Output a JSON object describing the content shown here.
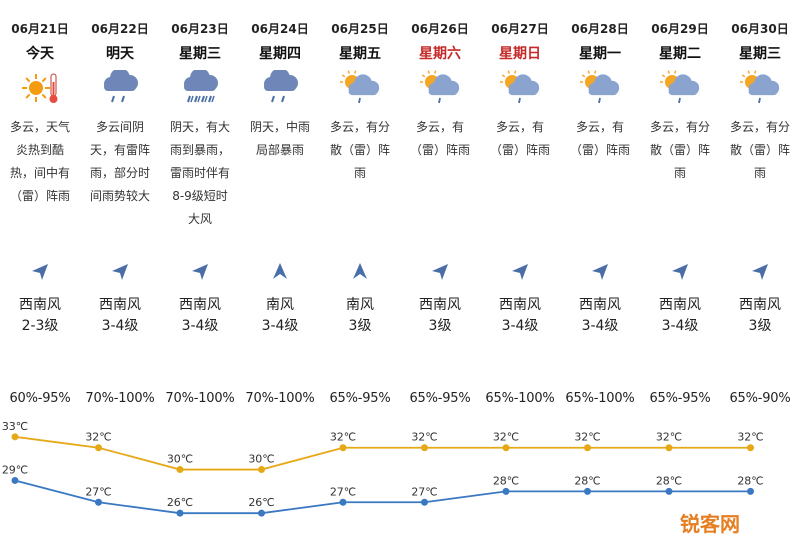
{
  "days": [
    {
      "date": "06月21日",
      "day": "今天",
      "weekend": false,
      "icon": "sun-hot-icon",
      "desc": "多云，天气炎热到酷热，间中有（雷）阵雨",
      "wind_dir": "西南风",
      "wind_level": "2-3级",
      "wind_arrow": "arrow-northeast-icon",
      "humidity": "60%-95%"
    },
    {
      "date": "06月22日",
      "day": "明天",
      "weekend": false,
      "icon": "cloud-rain-icon",
      "desc": "多云间阴天，有雷阵雨，部分时间雨势较大",
      "wind_dir": "西南风",
      "wind_level": "3-4级",
      "wind_arrow": "arrow-northeast-icon",
      "humidity": "70%-100%"
    },
    {
      "date": "06月23日",
      "day": "星期三",
      "weekend": false,
      "icon": "cloud-heavy-rain-icon",
      "desc": "阴天，有大雨到暴雨，雷雨时伴有8-9级短时大风",
      "wind_dir": "西南风",
      "wind_level": "3-4级",
      "wind_arrow": "arrow-northeast-icon",
      "humidity": "70%-100%"
    },
    {
      "date": "06月24日",
      "day": "星期四",
      "weekend": false,
      "icon": "cloud-rain-icon",
      "desc": "阴天，中雨局部暴雨",
      "wind_dir": "南风",
      "wind_level": "3-4级",
      "wind_arrow": "arrow-north-icon",
      "humidity": "70%-100%"
    },
    {
      "date": "06月25日",
      "day": "星期五",
      "weekend": false,
      "icon": "partly-cloudy-rain-icon",
      "desc": "多云，有分散（雷）阵雨",
      "wind_dir": "南风",
      "wind_level": "3级",
      "wind_arrow": "arrow-north-icon",
      "humidity": "65%-95%"
    },
    {
      "date": "06月26日",
      "day": "星期六",
      "weekend": true,
      "icon": "partly-cloudy-rain-icon",
      "desc": "多云，有（雷）阵雨",
      "wind_dir": "西南风",
      "wind_level": "3级",
      "wind_arrow": "arrow-northeast-icon",
      "humidity": "65%-95%"
    },
    {
      "date": "06月27日",
      "day": "星期日",
      "weekend": true,
      "icon": "partly-cloudy-rain-icon",
      "desc": "多云，有（雷）阵雨",
      "wind_dir": "西南风",
      "wind_level": "3-4级",
      "wind_arrow": "arrow-northeast-icon",
      "humidity": "65%-100%"
    },
    {
      "date": "06月28日",
      "day": "星期一",
      "weekend": false,
      "icon": "partly-cloudy-rain-icon",
      "desc": "多云，有（雷）阵雨",
      "wind_dir": "西南风",
      "wind_level": "3-4级",
      "wind_arrow": "arrow-northeast-icon",
      "humidity": "65%-100%"
    },
    {
      "date": "06月29日",
      "day": "星期二",
      "weekend": false,
      "icon": "partly-cloudy-rain-icon",
      "desc": "多云，有分散（雷）阵雨",
      "wind_dir": "西南风",
      "wind_level": "3-4级",
      "wind_arrow": "arrow-northeast-icon",
      "humidity": "65%-95%"
    },
    {
      "date": "06月30日",
      "day": "星期三",
      "weekend": false,
      "icon": "partly-cloudy-rain-icon",
      "desc": "多云，有分散（雷）阵雨",
      "wind_dir": "西南风",
      "wind_level": "3级",
      "wind_arrow": "arrow-northeast-icon",
      "humidity": "65%-90%"
    }
  ],
  "chart_data": {
    "type": "line",
    "categories": [
      "06月21日",
      "06月22日",
      "06月23日",
      "06月24日",
      "06月25日",
      "06月26日",
      "06月27日",
      "06月28日",
      "06月29日",
      "06月30日"
    ],
    "series": [
      {
        "values": [
          33,
          32,
          30,
          30,
          32,
          32,
          32,
          32,
          32,
          32
        ],
        "labels": [
          "33℃",
          "32℃",
          "30℃",
          "30℃",
          "32℃",
          "32℃",
          "32℃",
          "32℃",
          "32℃",
          "32℃"
        ],
        "color": "#e6a817"
      },
      {
        "values": [
          29,
          27,
          26,
          26,
          27,
          27,
          28,
          28,
          28,
          28
        ],
        "labels": [
          "29℃",
          "27℃",
          "26℃",
          "26℃",
          "27℃",
          "27℃",
          "28℃",
          "28℃",
          "28℃",
          "28℃"
        ],
        "color": "#3a78c2"
      }
    ],
    "ylim": [
      24,
      35
    ],
    "grid": false,
    "legend": "none"
  },
  "watermark": "锐客网",
  "colors": {
    "high": "#e6a817",
    "low": "#3a78c2",
    "weekend": "#c62828",
    "icon_cloud": "#7f9dc8",
    "sun": "#f39c12"
  }
}
